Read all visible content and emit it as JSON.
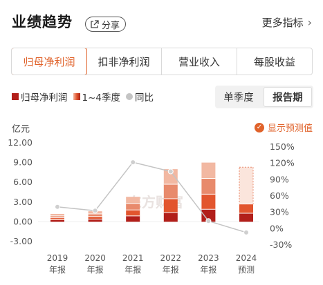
{
  "header": {
    "title": "业绩趋势",
    "share_label": "分享",
    "more_label": "更多指标"
  },
  "tabs": [
    {
      "label": "归母净利润",
      "active": true
    },
    {
      "label": "扣非净利润",
      "active": false
    },
    {
      "label": "营业收入",
      "active": false
    },
    {
      "label": "每股收益",
      "active": false
    }
  ],
  "legend": {
    "net_profit": "归母净利润",
    "quarters": "1~4季度",
    "yoy": "同比"
  },
  "period": {
    "quarterly": "单季度",
    "report": "报告期"
  },
  "unit": "亿元",
  "forecast_toggle": "显示预测值",
  "watermark": "东方财富",
  "colors": {
    "accent": "#e0622a",
    "q1": "#b21f1a",
    "q2": "#e2552e",
    "q3": "#e88a6c",
    "q4": "#f2b8a2",
    "line": "#c4c4c4"
  },
  "chart_data": {
    "type": "bar",
    "categories": [
      {
        "year": "2019",
        "sub": "年报"
      },
      {
        "year": "2020",
        "sub": "年报"
      },
      {
        "year": "2021",
        "sub": "年报"
      },
      {
        "year": "2022",
        "sub": "年报"
      },
      {
        "year": "2023",
        "sub": "年报"
      },
      {
        "year": "2024",
        "sub": "预测"
      }
    ],
    "y_left": {
      "ticks": [
        "12.00",
        "9.00",
        "6.00",
        "3.00",
        "0.00",
        "-3.00"
      ],
      "range": [
        -3,
        12
      ]
    },
    "y_right": {
      "ticks": [
        "150%",
        "120%",
        "90%",
        "60%",
        "30%",
        "0%",
        "-30%"
      ],
      "range": [
        -30,
        150
      ]
    },
    "stacks": [
      [
        0.3,
        0.3,
        0.3,
        0.3
      ],
      [
        0.4,
        0.4,
        0.4,
        0.4
      ],
      [
        0.9,
        0.9,
        1.0,
        1.0
      ],
      [
        1.4,
        2.1,
        2.2,
        2.3
      ],
      [
        1.9,
        2.3,
        2.4,
        2.4
      ],
      [
        1.3,
        1.4,
        5.6
      ]
    ],
    "forecast_index": 5,
    "yoy_percent": [
      40,
      33,
      122,
      105,
      14,
      -7
    ],
    "grid": false
  }
}
